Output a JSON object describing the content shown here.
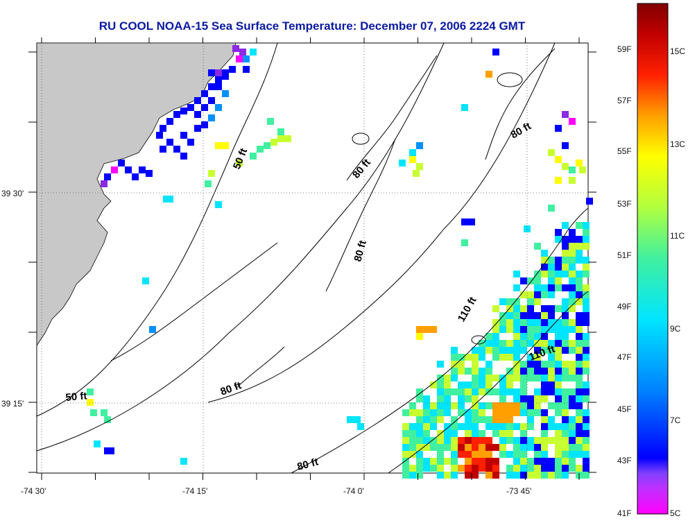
{
  "title": "RU COOL  NOAA-15  Sea Surface Temperature:  December 07, 2006 2224 GMT",
  "map": {
    "x_tick_labels": [
      "-74 30'",
      "-74 15'",
      "-74 0'",
      "-73 45'"
    ],
    "y_tick_labels": [
      "39 30'",
      "39 15'"
    ],
    "contour_labels": [
      {
        "text": "50 ft",
        "angle": -68
      },
      {
        "text": "80 ft",
        "angle": -50
      },
      {
        "text": "80 ft",
        "angle": -30
      },
      {
        "text": "80 ft",
        "angle": -75
      },
      {
        "text": "110 ft",
        "angle": -60
      },
      {
        "text": "110 ft",
        "angle": -20
      },
      {
        "text": "80 ft",
        "angle": -20
      },
      {
        "text": "50 ft",
        "angle": -5
      },
      {
        "text": "80 ft",
        "angle": -15
      }
    ],
    "land_color": "#c8c8c8",
    "grid": "dotted"
  },
  "color_scale": {
    "fahrenheit_labels": [
      "59F",
      "57F",
      "55F",
      "53F",
      "51F",
      "49F",
      "47F",
      "45F",
      "43F",
      "41F"
    ],
    "celsius_labels": [
      "15C",
      "13C",
      "11C",
      "9C",
      "7C",
      "5C"
    ],
    "colors": [
      "#ff00ff",
      "#8a2be2",
      "#0000ff",
      "#0090ff",
      "#00e5ff",
      "#40f0a0",
      "#c8ff30",
      "#ffff00",
      "#ffa000",
      "#ff2000",
      "#c00000",
      "#800000"
    ],
    "range_f": [
      41,
      61
    ]
  }
}
